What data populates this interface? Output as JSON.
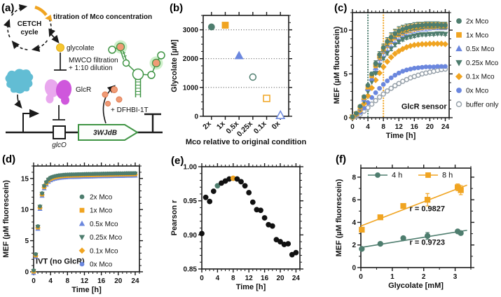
{
  "colors": {
    "teal": "#4e7d6e",
    "orange": "#f0a421",
    "blue": "#6b87de",
    "gray": "#97a1aa",
    "black": "#111111",
    "yellow": "#f6c62f",
    "salmon": "#f09b76",
    "salmon_dark": "#dd7a50",
    "magenta": "#cf57dc",
    "pink": "#e9a8ee",
    "cyan": "#62bdd4",
    "green": "#3f9444",
    "halo": "#a6e39f",
    "ink": "#1a1a1a"
  },
  "panels": {
    "a": {
      "label": "(a)",
      "cetch_line1": "CETCH",
      "cetch_line2": "cycle",
      "titration": "titration of Mco concentration",
      "glycolate": "glycolate",
      "mwco_line1": "MWCO filtration",
      "mwco_line2": "+ 1:10 dilution",
      "glcr": "GlcR",
      "dfhbi": "+ DFHBI-1T",
      "gene": "3WJdB",
      "operator": "glcO"
    },
    "b": {
      "label": "(b)"
    },
    "c": {
      "label": "(c)"
    },
    "d": {
      "label": "(d)"
    },
    "e": {
      "label": "(e)"
    },
    "f": {
      "label": "(f)"
    }
  },
  "chart_data": [
    {
      "id": "b",
      "type": "scatter",
      "xlim": [
        0.4,
        6.6
      ],
      "ylim": [
        0,
        3500
      ],
      "xticks": {
        "values": [
          1,
          2,
          3,
          4,
          5,
          6
        ],
        "labels": [
          "2x",
          "1x",
          "0.5x",
          "0.25x",
          "0.1x",
          "0x"
        ],
        "rotate": -45
      },
      "yticks": {
        "values": [
          0,
          1000,
          2000,
          3000
        ],
        "labels": [
          "0",
          "1000",
          "2000",
          "3000"
        ]
      },
      "yminor": 250,
      "hgrid": [
        1000,
        2000,
        3000
      ],
      "xlabel": "Mco relative to original condition",
      "ylabel": "Glycolate [µM]",
      "series": [
        {
          "name": "2x",
          "marker": "circle",
          "color": "teal",
          "open": false,
          "size": 9,
          "x": [
            1
          ],
          "y": [
            3100
          ]
        },
        {
          "name": "1x",
          "marker": "square",
          "color": "orange",
          "open": false,
          "size": 9,
          "x": [
            2
          ],
          "y": [
            3160
          ]
        },
        {
          "name": "0.5x",
          "marker": "tri-up",
          "color": "blue",
          "open": false,
          "size": 10,
          "x": [
            3
          ],
          "y": [
            2100
          ]
        },
        {
          "name": "0.25x",
          "marker": "circle",
          "color": "teal",
          "open": true,
          "size": 9,
          "x": [
            4
          ],
          "y": [
            1360
          ]
        },
        {
          "name": "0.1x",
          "marker": "square",
          "color": "orange",
          "open": true,
          "size": 9,
          "x": [
            5
          ],
          "y": [
            620
          ]
        },
        {
          "name": "0x",
          "marker": "tri-up",
          "color": "blue",
          "open": true,
          "size": 10,
          "x": [
            6
          ],
          "y": [
            30
          ]
        }
      ]
    },
    {
      "id": "c",
      "type": "scatter",
      "xlim": [
        0,
        25
      ],
      "ylim": [
        0,
        12
      ],
      "xticks": {
        "values": [
          0,
          4,
          8,
          12,
          16,
          20,
          24
        ]
      },
      "yticks": {
        "values": [
          0,
          5,
          10
        ]
      },
      "xminor": 1,
      "yminor": 1,
      "xlabel": "Time [h]",
      "ylabel": "MEF (µM fluorescein)",
      "x_step": 1,
      "vlines": [
        {
          "x": 4,
          "color": "teal"
        },
        {
          "x": 8,
          "color": "orange"
        }
      ],
      "series": [
        {
          "name": "buffer only",
          "marker": "circle",
          "color": "gray",
          "open": true,
          "size": 6,
          "y": [
            0.0,
            0.15,
            0.4,
            0.75,
            1.15,
            1.55,
            1.95,
            2.35,
            2.7,
            3.05,
            3.35,
            3.65,
            3.9,
            4.15,
            4.35,
            4.55,
            4.7,
            4.85,
            5.0,
            5.1,
            5.2,
            5.3,
            5.4,
            5.5,
            5.55
          ]
        },
        {
          "name": "0x Mco",
          "marker": "circle",
          "color": "blue",
          "open": false,
          "size": 6,
          "y": [
            0.05,
            0.25,
            0.6,
            1.1,
            1.7,
            2.3,
            2.85,
            3.35,
            3.8,
            4.2,
            4.55,
            4.85,
            5.1,
            5.3,
            5.45,
            5.55,
            5.65,
            5.7,
            5.75,
            5.8,
            5.8,
            5.8,
            5.85,
            5.85,
            5.85
          ]
        },
        {
          "name": "0.1x Mco",
          "marker": "diamond",
          "color": "orange",
          "open": false,
          "size": 6,
          "y": [
            0.05,
            0.35,
            0.85,
            1.6,
            2.5,
            3.4,
            4.3,
            5.1,
            5.8,
            6.4,
            6.9,
            7.3,
            7.6,
            7.85,
            8.05,
            8.2,
            8.3,
            8.35,
            8.4,
            8.4,
            8.45,
            8.45,
            8.45,
            8.45,
            8.4
          ]
        },
        {
          "name": "0.25x Mco",
          "marker": "tri-down",
          "color": "teal",
          "open": false,
          "size": 6,
          "y": [
            0.1,
            0.4,
            1.0,
            1.9,
            3.0,
            4.1,
            5.1,
            6.0,
            6.8,
            7.4,
            7.9,
            8.35,
            8.7,
            8.95,
            9.15,
            9.25,
            9.35,
            9.45,
            9.5,
            9.5,
            9.55,
            9.55,
            9.6,
            9.6,
            9.55
          ],
          "err": [
            0,
            0,
            0,
            0,
            0,
            0,
            0.15,
            0.2,
            0.2,
            0.25,
            0.25,
            0.25,
            0.25,
            0.2,
            0.2,
            0.2,
            0.2,
            0.2,
            0.15,
            0.15,
            0.15,
            0.15,
            0.15,
            0.15,
            0.15
          ]
        },
        {
          "name": "0.5x Mco",
          "marker": "tri-up",
          "color": "blue",
          "open": false,
          "size": 6,
          "y": [
            0.1,
            0.4,
            1.1,
            2.1,
            3.3,
            4.5,
            5.7,
            6.7,
            7.5,
            8.2,
            8.75,
            9.2,
            9.5,
            9.75,
            9.95,
            10.1,
            10.15,
            10.25,
            10.3,
            10.3,
            10.35,
            10.4,
            10.4,
            10.4,
            10.4
          ],
          "err": [
            0,
            0,
            0,
            0,
            0,
            0.25,
            0.35,
            0.45,
            0.5,
            0.55,
            0.6,
            0.6,
            0.55,
            0.5,
            0.5,
            0.45,
            0.45,
            0.4,
            0.4,
            0.4,
            0.35,
            0.35,
            0.35,
            0.35,
            0.35
          ]
        },
        {
          "name": "1x Mco",
          "marker": "square",
          "color": "orange",
          "open": false,
          "size": 6,
          "y": [
            0.1,
            0.45,
            1.2,
            2.3,
            3.5,
            4.8,
            6.0,
            7.0,
            7.8,
            8.5,
            9.0,
            9.45,
            9.75,
            9.95,
            10.1,
            10.2,
            10.3,
            10.4,
            10.45,
            10.5,
            10.5,
            10.5,
            10.55,
            10.5,
            10.5
          ],
          "err": [
            0,
            0,
            0,
            0,
            0,
            0.2,
            0.3,
            0.4,
            0.45,
            0.5,
            0.55,
            0.55,
            0.5,
            0.5,
            0.45,
            0.45,
            0.4,
            0.4,
            0.4,
            0.35,
            0.35,
            0.35,
            0.35,
            0.35,
            0.35
          ]
        },
        {
          "name": "2x Mco",
          "marker": "circle",
          "color": "teal",
          "open": false,
          "size": 6,
          "y": [
            0.1,
            0.5,
            1.3,
            2.4,
            3.7,
            5.0,
            6.2,
            7.2,
            8.0,
            8.7,
            9.2,
            9.6,
            9.9,
            10.1,
            10.25,
            10.35,
            10.45,
            10.5,
            10.55,
            10.6,
            10.6,
            10.6,
            10.6,
            10.55,
            10.55
          ],
          "err": [
            0,
            0,
            0,
            0,
            0,
            0.2,
            0.3,
            0.35,
            0.4,
            0.45,
            0.5,
            0.5,
            0.5,
            0.45,
            0.45,
            0.4,
            0.4,
            0.4,
            0.35,
            0.35,
            0.35,
            0.35,
            0.35,
            0.35,
            0.35
          ]
        }
      ],
      "annotations": [
        {
          "x": 24.4,
          "y": 1.0,
          "text": "GlcR sensor",
          "anchor": "end",
          "bold": true,
          "size": 11
        }
      ],
      "legend": {
        "items": [
          {
            "label": "2x Mco",
            "marker": "circle",
            "color": "teal",
            "open": false
          },
          {
            "label": "1x Mco",
            "marker": "square",
            "color": "orange",
            "open": false
          },
          {
            "label": "0.5x Mco",
            "marker": "tri-up",
            "color": "blue",
            "open": false
          },
          {
            "label": "0.25x Mco",
            "marker": "tri-down",
            "color": "teal",
            "open": false
          },
          {
            "label": "0.1x Mco",
            "marker": "diamond",
            "color": "orange",
            "open": false
          },
          {
            "label": "0x Mco",
            "marker": "circle",
            "color": "blue",
            "open": false
          },
          {
            "label": "buffer only",
            "marker": "circle",
            "color": "gray",
            "open": true
          }
        ]
      }
    },
    {
      "id": "d",
      "type": "scatter",
      "xlim": [
        0,
        25
      ],
      "ylim": [
        0,
        17
      ],
      "xticks": {
        "values": [
          0,
          4,
          8,
          12,
          16,
          20,
          24
        ]
      },
      "yticks": {
        "values": [
          0,
          5,
          10,
          15
        ]
      },
      "xminor": 1,
      "yminor": 1,
      "xlabel": "Time [h]",
      "ylabel": "MEF (µM fluorescein)",
      "x_step": 0.5,
      "base": [
        0.1,
        2.7,
        7.2,
        10.4,
        12.5,
        13.7,
        14.3,
        14.75,
        15.0,
        15.15,
        15.25,
        15.32,
        15.38,
        15.42,
        15.45,
        15.48,
        15.5,
        15.51,
        15.52,
        15.53,
        15.54,
        15.55,
        15.56,
        15.57,
        15.58,
        15.59,
        15.6,
        15.6,
        15.61,
        15.62,
        15.63,
        15.63,
        15.64,
        15.65,
        15.65,
        15.66,
        15.67,
        15.67,
        15.68,
        15.69,
        15.69,
        15.7,
        15.7,
        15.71,
        15.72,
        15.72,
        15.73,
        15.73,
        15.74
      ],
      "series": [
        {
          "name": "0x Mco",
          "marker": "circle",
          "color": "blue",
          "open": false,
          "size": 5,
          "dy": 0.0
        },
        {
          "name": "0.1x Mco",
          "marker": "diamond",
          "color": "orange",
          "open": false,
          "size": 5,
          "dy": -0.12
        },
        {
          "name": "0.25x Mco",
          "marker": "tri-down",
          "color": "teal",
          "open": false,
          "size": 5,
          "dy": 0.05
        },
        {
          "name": "0.5x Mco",
          "marker": "tri-up",
          "color": "blue",
          "open": false,
          "size": 5,
          "dy": -0.3
        },
        {
          "name": "1x Mco",
          "marker": "square",
          "color": "orange",
          "open": false,
          "size": 5,
          "dy": -0.06
        },
        {
          "name": "2x Mco",
          "marker": "circle",
          "color": "teal",
          "open": false,
          "size": 5,
          "dy": 0.12
        }
      ],
      "annotations": [
        {
          "x": 0.5,
          "y": 1.3,
          "text": "IVT (no GlcR)",
          "anchor": "start",
          "bold": true,
          "size": 11
        }
      ],
      "legend": {
        "items": [
          {
            "label": "2x Mco",
            "marker": "circle",
            "color": "teal",
            "open": false
          },
          {
            "label": "1x Mco",
            "marker": "square",
            "color": "orange",
            "open": false
          },
          {
            "label": "0.5x Mco",
            "marker": "tri-up",
            "color": "blue",
            "open": false
          },
          {
            "label": "0.25x Mco",
            "marker": "tri-down",
            "color": "teal",
            "open": false
          },
          {
            "label": "0.1x Mco",
            "marker": "diamond",
            "color": "orange",
            "open": false
          },
          {
            "label": "0x Mco",
            "marker": "circle",
            "color": "blue",
            "open": false
          }
        ]
      }
    },
    {
      "id": "e",
      "type": "scatter",
      "xlim": [
        0,
        25
      ],
      "ylim": [
        0.85,
        1.0
      ],
      "xticks": {
        "values": [
          0,
          4,
          8,
          12,
          16,
          20,
          24
        ]
      },
      "yticks": {
        "values": [
          0.85,
          0.9,
          0.95,
          1.0
        ],
        "labels": [
          "0.85",
          "0.90",
          "0.95",
          "1.00"
        ]
      },
      "xminor": 1,
      "yminor": 0.01,
      "xlabel": "Time [h]",
      "ylabel": "Pearson r",
      "x_step": 1,
      "series": [
        {
          "name": "Pearson r",
          "marker": "circle",
          "color": "black",
          "open": false,
          "size": 7,
          "y": [
            0.902,
            0.955,
            0.949,
            0.964,
            0.972,
            0.976,
            0.979,
            0.982,
            0.983,
            0.982,
            0.978,
            0.972,
            0.962,
            0.948,
            0.937,
            0.936,
            0.925,
            0.915,
            0.913,
            0.893,
            0.89,
            0.886,
            0.887,
            0.871,
            0.874
          ],
          "point_colors": {
            "4": "teal",
            "8": "orange"
          }
        }
      ]
    },
    {
      "id": "f",
      "type": "scatter",
      "xlim": [
        0,
        3.5
      ],
      "ylim": [
        0,
        8.8
      ],
      "xticks": {
        "values": [
          0,
          1,
          2,
          3
        ]
      },
      "yticks": {
        "values": [
          0,
          2,
          4,
          6,
          8
        ]
      },
      "xminor": 0.5,
      "yminor": 1,
      "xlabel": "Glycolate [mM]",
      "ylabel": "MEF (µM fluorescein)",
      "series": [
        {
          "name": "4 h",
          "marker": "circle",
          "color": "teal",
          "open": false,
          "size": 7.5,
          "x": [
            0.03,
            0.62,
            1.35,
            2.12,
            3.08,
            3.18
          ],
          "y": [
            1.65,
            2.1,
            2.6,
            2.8,
            3.2,
            3.05
          ],
          "err": [
            0.12,
            0.1,
            0.15,
            0.3,
            0.15,
            0.12
          ],
          "fit": {
            "x": [
              0,
              3.38
            ],
            "y": [
              1.78,
              3.3
            ]
          }
        },
        {
          "name": "8 h",
          "marker": "square",
          "color": "orange",
          "open": false,
          "size": 7.5,
          "x": [
            0.03,
            0.62,
            1.35,
            2.12,
            3.08,
            3.18
          ],
          "y": [
            3.35,
            4.45,
            5.45,
            6.0,
            7.1,
            6.85
          ],
          "err": [
            0.15,
            0.18,
            0.15,
            0.55,
            0.3,
            0.4
          ],
          "fit": {
            "x": [
              0,
              3.38
            ],
            "y": [
              3.68,
              7.3
            ]
          }
        }
      ],
      "annotations": [
        {
          "x": 1.55,
          "y": 5.0,
          "text": "r = 0.9827",
          "anchor": "start",
          "bold": true,
          "size": 11
        },
        {
          "x": 1.55,
          "y": 2.0,
          "text": "r = 0.9723",
          "anchor": "start",
          "bold": true,
          "size": 11
        }
      ],
      "legend": {
        "items": [
          {
            "label": "4 h",
            "marker": "circle",
            "color": "teal",
            "open": false,
            "line": true
          },
          {
            "label": "8 h",
            "marker": "square",
            "color": "orange",
            "open": false,
            "line": true
          }
        ]
      }
    }
  ]
}
